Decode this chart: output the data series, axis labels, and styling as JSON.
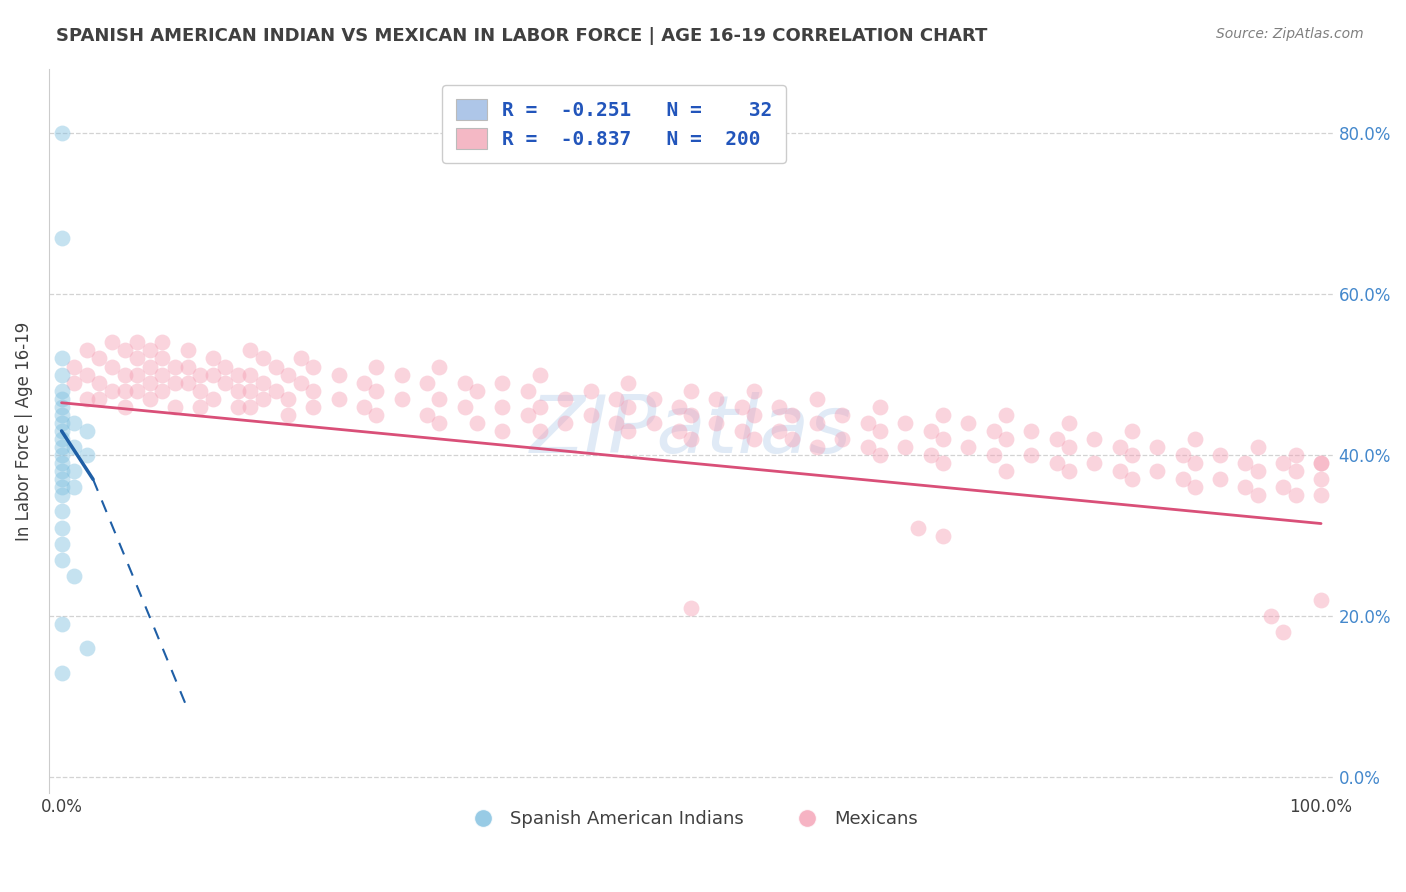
{
  "title": "SPANISH AMERICAN INDIAN VS MEXICAN IN LABOR FORCE | AGE 16-19 CORRELATION CHART",
  "source_text": "Source: ZipAtlas.com",
  "ylabel": "In Labor Force | Age 16-19",
  "watermark": "ZIPatlas",
  "xlim": [
    -0.01,
    1.01
  ],
  "ylim": [
    -0.02,
    0.88
  ],
  "ytick_positions": [
    0.0,
    0.2,
    0.4,
    0.6,
    0.8
  ],
  "ytick_labels": [
    "0.0%",
    "20.0%",
    "40.0%",
    "60.0%",
    "80.0%"
  ],
  "xtick_edge_labels": [
    [
      "0.0%",
      0.0
    ],
    [
      "100.0%",
      1.0
    ]
  ],
  "legend_labels": [
    "Spanish American Indians",
    "Mexicans"
  ],
  "blue_scatter_color": "#7fbfdf",
  "pink_scatter_color": "#f4a0b5",
  "blue_line_color": "#1f5fa6",
  "pink_line_color": "#d94f78",
  "blue_dots": [
    [
      0.0,
      0.8
    ],
    [
      0.0,
      0.67
    ],
    [
      0.0,
      0.52
    ],
    [
      0.0,
      0.5
    ],
    [
      0.0,
      0.48
    ],
    [
      0.0,
      0.47
    ],
    [
      0.0,
      0.46
    ],
    [
      0.0,
      0.45
    ],
    [
      0.0,
      0.44
    ],
    [
      0.0,
      0.43
    ],
    [
      0.0,
      0.42
    ],
    [
      0.0,
      0.41
    ],
    [
      0.0,
      0.4
    ],
    [
      0.0,
      0.39
    ],
    [
      0.0,
      0.38
    ],
    [
      0.0,
      0.37
    ],
    [
      0.0,
      0.36
    ],
    [
      0.0,
      0.35
    ],
    [
      0.0,
      0.33
    ],
    [
      0.0,
      0.31
    ],
    [
      0.0,
      0.29
    ],
    [
      0.0,
      0.27
    ],
    [
      0.01,
      0.44
    ],
    [
      0.01,
      0.41
    ],
    [
      0.01,
      0.38
    ],
    [
      0.01,
      0.36
    ],
    [
      0.02,
      0.43
    ],
    [
      0.02,
      0.4
    ],
    [
      0.0,
      0.19
    ],
    [
      0.02,
      0.16
    ],
    [
      0.0,
      0.13
    ],
    [
      0.01,
      0.25
    ]
  ],
  "pink_dots": [
    [
      0.01,
      0.51
    ],
    [
      0.01,
      0.49
    ],
    [
      0.02,
      0.53
    ],
    [
      0.02,
      0.5
    ],
    [
      0.02,
      0.47
    ],
    [
      0.03,
      0.52
    ],
    [
      0.03,
      0.49
    ],
    [
      0.03,
      0.47
    ],
    [
      0.04,
      0.54
    ],
    [
      0.04,
      0.51
    ],
    [
      0.04,
      0.48
    ],
    [
      0.05,
      0.53
    ],
    [
      0.05,
      0.5
    ],
    [
      0.05,
      0.48
    ],
    [
      0.05,
      0.46
    ],
    [
      0.06,
      0.54
    ],
    [
      0.06,
      0.52
    ],
    [
      0.06,
      0.5
    ],
    [
      0.06,
      0.48
    ],
    [
      0.07,
      0.53
    ],
    [
      0.07,
      0.51
    ],
    [
      0.07,
      0.49
    ],
    [
      0.07,
      0.47
    ],
    [
      0.08,
      0.52
    ],
    [
      0.08,
      0.5
    ],
    [
      0.08,
      0.54
    ],
    [
      0.08,
      0.48
    ],
    [
      0.09,
      0.51
    ],
    [
      0.09,
      0.49
    ],
    [
      0.09,
      0.46
    ],
    [
      0.1,
      0.53
    ],
    [
      0.1,
      0.51
    ],
    [
      0.1,
      0.49
    ],
    [
      0.11,
      0.5
    ],
    [
      0.11,
      0.48
    ],
    [
      0.11,
      0.46
    ],
    [
      0.12,
      0.52
    ],
    [
      0.12,
      0.5
    ],
    [
      0.12,
      0.47
    ],
    [
      0.13,
      0.51
    ],
    [
      0.13,
      0.49
    ],
    [
      0.14,
      0.5
    ],
    [
      0.14,
      0.48
    ],
    [
      0.14,
      0.46
    ],
    [
      0.15,
      0.53
    ],
    [
      0.15,
      0.5
    ],
    [
      0.15,
      0.48
    ],
    [
      0.15,
      0.46
    ],
    [
      0.16,
      0.52
    ],
    [
      0.16,
      0.49
    ],
    [
      0.16,
      0.47
    ],
    [
      0.17,
      0.51
    ],
    [
      0.17,
      0.48
    ],
    [
      0.18,
      0.5
    ],
    [
      0.18,
      0.47
    ],
    [
      0.18,
      0.45
    ],
    [
      0.19,
      0.52
    ],
    [
      0.19,
      0.49
    ],
    [
      0.2,
      0.51
    ],
    [
      0.2,
      0.48
    ],
    [
      0.2,
      0.46
    ],
    [
      0.22,
      0.5
    ],
    [
      0.22,
      0.47
    ],
    [
      0.24,
      0.49
    ],
    [
      0.24,
      0.46
    ],
    [
      0.25,
      0.51
    ],
    [
      0.25,
      0.48
    ],
    [
      0.25,
      0.45
    ],
    [
      0.27,
      0.5
    ],
    [
      0.27,
      0.47
    ],
    [
      0.29,
      0.49
    ],
    [
      0.29,
      0.45
    ],
    [
      0.3,
      0.51
    ],
    [
      0.3,
      0.47
    ],
    [
      0.3,
      0.44
    ],
    [
      0.32,
      0.49
    ],
    [
      0.32,
      0.46
    ],
    [
      0.33,
      0.48
    ],
    [
      0.33,
      0.44
    ],
    [
      0.35,
      0.49
    ],
    [
      0.35,
      0.46
    ],
    [
      0.35,
      0.43
    ],
    [
      0.37,
      0.48
    ],
    [
      0.37,
      0.45
    ],
    [
      0.38,
      0.5
    ],
    [
      0.38,
      0.46
    ],
    [
      0.38,
      0.43
    ],
    [
      0.4,
      0.47
    ],
    [
      0.4,
      0.44
    ],
    [
      0.42,
      0.48
    ],
    [
      0.42,
      0.45
    ],
    [
      0.44,
      0.47
    ],
    [
      0.44,
      0.44
    ],
    [
      0.45,
      0.49
    ],
    [
      0.45,
      0.46
    ],
    [
      0.45,
      0.43
    ],
    [
      0.47,
      0.47
    ],
    [
      0.47,
      0.44
    ],
    [
      0.49,
      0.46
    ],
    [
      0.49,
      0.43
    ],
    [
      0.5,
      0.48
    ],
    [
      0.5,
      0.45
    ],
    [
      0.5,
      0.42
    ],
    [
      0.52,
      0.47
    ],
    [
      0.52,
      0.44
    ],
    [
      0.54,
      0.46
    ],
    [
      0.54,
      0.43
    ],
    [
      0.55,
      0.48
    ],
    [
      0.55,
      0.45
    ],
    [
      0.55,
      0.42
    ],
    [
      0.57,
      0.46
    ],
    [
      0.57,
      0.43
    ],
    [
      0.58,
      0.45
    ],
    [
      0.58,
      0.42
    ],
    [
      0.6,
      0.47
    ],
    [
      0.6,
      0.44
    ],
    [
      0.6,
      0.41
    ],
    [
      0.62,
      0.45
    ],
    [
      0.62,
      0.42
    ],
    [
      0.64,
      0.44
    ],
    [
      0.64,
      0.41
    ],
    [
      0.65,
      0.46
    ],
    [
      0.65,
      0.43
    ],
    [
      0.65,
      0.4
    ],
    [
      0.67,
      0.44
    ],
    [
      0.67,
      0.41
    ],
    [
      0.69,
      0.43
    ],
    [
      0.69,
      0.4
    ],
    [
      0.7,
      0.45
    ],
    [
      0.7,
      0.42
    ],
    [
      0.7,
      0.39
    ],
    [
      0.72,
      0.44
    ],
    [
      0.72,
      0.41
    ],
    [
      0.74,
      0.43
    ],
    [
      0.74,
      0.4
    ],
    [
      0.75,
      0.45
    ],
    [
      0.75,
      0.42
    ],
    [
      0.75,
      0.38
    ],
    [
      0.77,
      0.43
    ],
    [
      0.77,
      0.4
    ],
    [
      0.79,
      0.42
    ],
    [
      0.79,
      0.39
    ],
    [
      0.8,
      0.44
    ],
    [
      0.8,
      0.41
    ],
    [
      0.8,
      0.38
    ],
    [
      0.82,
      0.42
    ],
    [
      0.82,
      0.39
    ],
    [
      0.84,
      0.41
    ],
    [
      0.84,
      0.38
    ],
    [
      0.85,
      0.43
    ],
    [
      0.85,
      0.4
    ],
    [
      0.85,
      0.37
    ],
    [
      0.87,
      0.41
    ],
    [
      0.87,
      0.38
    ],
    [
      0.89,
      0.4
    ],
    [
      0.89,
      0.37
    ],
    [
      0.9,
      0.42
    ],
    [
      0.9,
      0.39
    ],
    [
      0.9,
      0.36
    ],
    [
      0.92,
      0.4
    ],
    [
      0.92,
      0.37
    ],
    [
      0.94,
      0.39
    ],
    [
      0.94,
      0.36
    ],
    [
      0.95,
      0.41
    ],
    [
      0.95,
      0.38
    ],
    [
      0.95,
      0.35
    ],
    [
      0.97,
      0.39
    ],
    [
      0.97,
      0.36
    ],
    [
      0.98,
      0.4
    ],
    [
      0.98,
      0.38
    ],
    [
      0.98,
      0.35
    ],
    [
      1.0,
      0.39
    ],
    [
      1.0,
      0.37
    ],
    [
      1.0,
      0.35
    ],
    [
      0.5,
      0.21
    ],
    [
      0.96,
      0.2
    ],
    [
      0.97,
      0.18
    ],
    [
      1.0,
      0.39
    ],
    [
      1.0,
      0.22
    ],
    [
      0.7,
      0.3
    ],
    [
      0.68,
      0.31
    ]
  ],
  "pink_line_x0": 0.0,
  "pink_line_x1": 1.0,
  "pink_line_y0": 0.465,
  "pink_line_y1": 0.315,
  "blue_line_solid_x0": 0.0,
  "blue_line_solid_x1": 0.025,
  "blue_line_solid_y0": 0.43,
  "blue_line_solid_y1": 0.37,
  "blue_line_dash_x0": 0.025,
  "blue_line_dash_x1": 0.1,
  "blue_line_dash_y0": 0.37,
  "blue_line_dash_y1": 0.085,
  "grid_color": "#c8c8c8",
  "background_color": "#ffffff",
  "title_color": "#404040",
  "source_color": "#808080",
  "ytick_color": "#4488cc",
  "scatter_size": 130,
  "scatter_alpha": 0.45,
  "legend_top_label1": "R =  -0.251   N =    32",
  "legend_top_label2": "R =  -0.837   N =  200",
  "legend_top_color": "#2255bb"
}
